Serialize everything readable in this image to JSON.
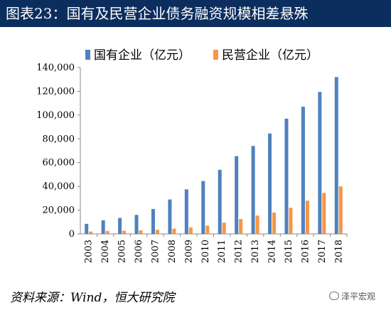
{
  "figure": {
    "title": "图表23：国有及民营企业债务融资规模相差悬殊",
    "source": "资料来源：Wind，恒大研究院",
    "watermark": "泽平宏观"
  },
  "chart_data": {
    "type": "bar",
    "categories": [
      "2003",
      "2004",
      "2005",
      "2006",
      "2007",
      "2008",
      "2009",
      "2010",
      "2011",
      "2012",
      "2013",
      "2014",
      "2015",
      "2016",
      "2017",
      "2018"
    ],
    "series": [
      {
        "name": "国有企业（亿元）",
        "color": "#4f81bd",
        "values": [
          8500,
          11500,
          13500,
          16000,
          21000,
          29000,
          37500,
          44500,
          54000,
          65500,
          74000,
          84500,
          97000,
          107000,
          119500,
          132000
        ]
      },
      {
        "name": "民营企业（亿元）",
        "color": "#f79646",
        "values": [
          2000,
          2500,
          2700,
          3000,
          3500,
          4500,
          5500,
          7000,
          9500,
          12500,
          15500,
          18000,
          22000,
          28000,
          34500,
          40000
        ]
      }
    ],
    "ylim": [
      0,
      140000
    ],
    "yticks": [
      "0",
      "20,000",
      "40,000",
      "60,000",
      "80,000",
      "100,000",
      "120,000",
      "140,000"
    ],
    "ytick_values": [
      0,
      20000,
      40000,
      60000,
      80000,
      100000,
      120000,
      140000
    ],
    "legend": "top",
    "grid": false,
    "xlabel": "",
    "ylabel": ""
  }
}
